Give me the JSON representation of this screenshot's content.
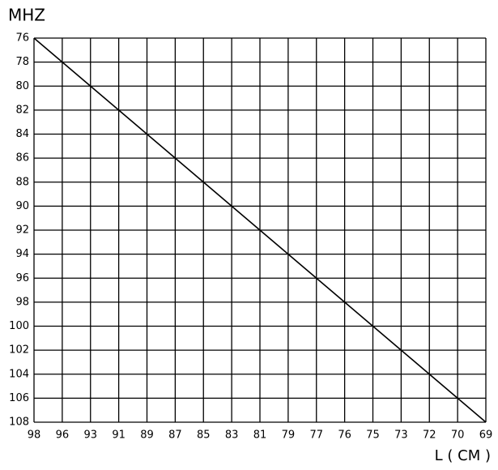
{
  "chart_data": {
    "type": "line",
    "y_label": "MHZ",
    "x_label": "L ( CM )",
    "categories": [
      "98",
      "96",
      "93",
      "91",
      "89",
      "87",
      "85",
      "83",
      "81",
      "79",
      "77",
      "76",
      "75",
      "73",
      "72",
      "70",
      "69"
    ],
    "values": [
      76,
      78,
      80,
      82,
      84,
      86,
      88,
      90,
      92,
      94,
      96,
      98,
      100,
      102,
      104,
      106,
      108
    ],
    "color": "#000000",
    "ylim": [
      76,
      108
    ],
    "yticks": [
      76,
      78,
      80,
      82,
      84,
      86,
      88,
      90,
      92,
      94,
      96,
      98,
      100,
      102,
      104,
      106,
      108
    ],
    "invert_y": true,
    "grid": true
  }
}
